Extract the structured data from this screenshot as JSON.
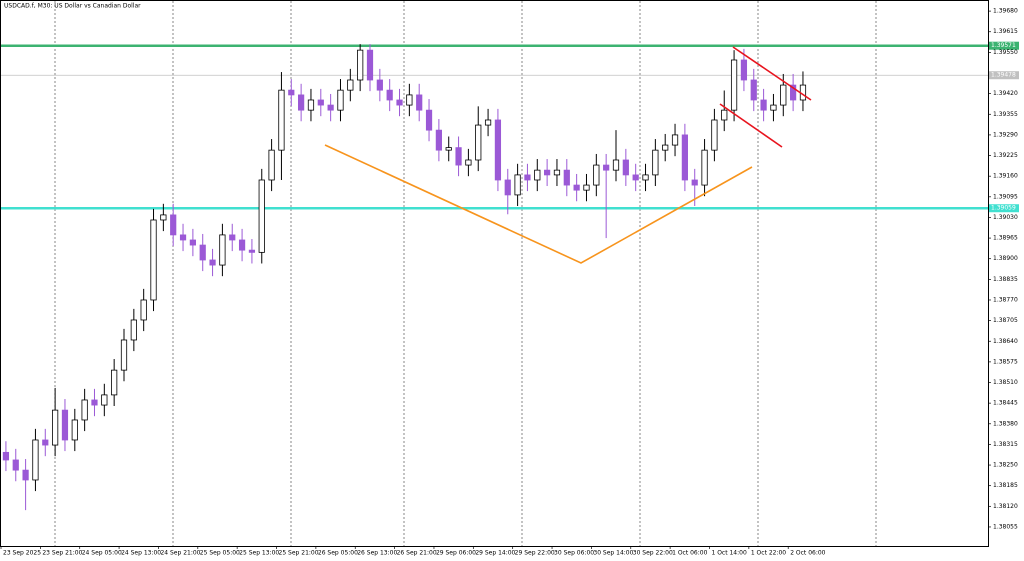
{
  "chart_data": {
    "type": "candlestick",
    "title": "USDCAD.f, M30:  US Dollar vs Canadian Dollar",
    "ylim": [
      1.37995,
      1.39715
    ],
    "yticks": [
      {
        "value": 1.3968,
        "label": "1.39680"
      },
      1.39615,
      {
        "value": 1.3955,
        "label": "1.39550"
      },
      {
        "value": 1.3942,
        "label": "1.39420"
      },
      1.39355,
      {
        "value": 1.3929,
        "label": "1.39290"
      },
      1.39225,
      {
        "value": 1.3916,
        "label": "1.39160"
      },
      1.39095,
      {
        "value": 1.3903,
        "label": "1.39030"
      },
      1.38965,
      {
        "value": 1.389,
        "label": "1.38900"
      },
      1.38835,
      {
        "value": 1.3877,
        "label": "1.38770"
      },
      1.38705,
      {
        "value": 1.3864,
        "label": "1.38640"
      },
      1.38575,
      {
        "value": 1.3851,
        "label": "1.38510"
      },
      1.38445,
      {
        "value": 1.3838,
        "label": "1.38380"
      },
      1.38315,
      {
        "value": 1.3825,
        "label": "1.38250"
      },
      1.38185,
      {
        "value": 1.3812,
        "label": "1.38120"
      },
      1.38055
    ],
    "xlim": [
      0,
      100
    ],
    "xticks": [
      {
        "value": 0,
        "label": "23 Sep 2025"
      },
      {
        "value": 4,
        "label": "23 Sep 21:00"
      },
      {
        "value": 8,
        "label": "24 Sep 05:00"
      },
      {
        "value": 12,
        "label": "24 Sep 13:00"
      },
      {
        "value": 16,
        "label": "24 Sep 21:00"
      },
      {
        "value": 20,
        "label": "25 Sep 05:00"
      },
      {
        "value": 24,
        "label": "25 Sep 13:00"
      },
      {
        "value": 28,
        "label": "25 Sep 21:00"
      },
      {
        "value": 32,
        "label": "26 Sep 05:00"
      },
      {
        "value": 36,
        "label": "26 Sep 13:00"
      },
      {
        "value": 40,
        "label": "26 Sep 21:00"
      },
      {
        "value": 44,
        "label": "29 Sep 06:00"
      },
      {
        "value": 48,
        "label": "29 Sep 14:00"
      },
      {
        "value": 52,
        "label": "29 Sep 22:00"
      },
      {
        "value": 56,
        "label": "30 Sep 06:00"
      },
      {
        "value": 60,
        "label": "30 Sep 14:00"
      },
      {
        "value": 64,
        "label": "30 Sep 22:00"
      },
      {
        "value": 68,
        "label": "1 Oct 06:00"
      },
      {
        "value": 72,
        "label": "1 Oct 14:00"
      },
      {
        "value": 76,
        "label": "1 Oct 22:00"
      },
      {
        "value": 80,
        "label": "2 Oct 06:00"
      }
    ],
    "up_color": "#000000",
    "down_color": "#9b59d6",
    "open": [
      1.3829,
      1.38266,
      1.38234,
      1.38203,
      1.38329,
      1.38313,
      1.38423,
      1.38329,
      1.38392,
      1.38455,
      1.38439,
      1.38471,
      1.38549,
      1.38644,
      1.38707,
      1.3877,
      1.39022,
      1.39038,
      1.38975,
      1.38959,
      1.38943,
      1.38896,
      1.3888,
      1.38975,
      1.38959,
      1.38927,
      1.3892,
      1.39148,
      1.39242,
      1.39431,
      1.39416,
      1.39368,
      1.394,
      1.39384,
      1.39368,
      1.39431,
      1.39463,
      1.39557,
      1.39463,
      1.39431,
      1.394,
      1.39384,
      1.39416,
      1.39368,
      1.39305,
      1.39242,
      1.3925,
      1.39195,
      1.39211,
      1.39321,
      1.39337,
      1.39148,
      1.39101,
      1.39164,
      1.39148,
      1.39179,
      1.39164,
      1.39179,
      1.39132,
      1.39116,
      1.39132,
      1.39195,
      1.39179,
      1.39211,
      1.39164,
      1.39148,
      1.39164,
      1.39242,
      1.39258,
      1.3929,
      1.39148,
      1.39132,
      1.39242,
      1.39337,
      1.39368,
      1.39526,
      1.39463,
      1.394,
      1.39368,
      1.39384,
      1.39447,
      1.394
    ],
    "high": [
      1.38325,
      1.38301,
      1.38269,
      1.38364,
      1.38364,
      1.38493,
      1.38458,
      1.38427,
      1.3849,
      1.3849,
      1.38506,
      1.38584,
      1.38679,
      1.38742,
      1.38805,
      1.39057,
      1.39073,
      1.39073,
      1.3901,
      1.38994,
      1.38978,
      1.38931,
      1.3901,
      1.3901,
      1.38994,
      1.38962,
      1.39183,
      1.39277,
      1.39488,
      1.39466,
      1.39451,
      1.39435,
      1.39435,
      1.39419,
      1.39466,
      1.39498,
      1.39576,
      1.39576,
      1.39498,
      1.39466,
      1.39435,
      1.39451,
      1.39451,
      1.39403,
      1.3934,
      1.39285,
      1.39285,
      1.39246,
      1.3938,
      1.39372,
      1.39372,
      1.39183,
      1.39199,
      1.39199,
      1.39214,
      1.39214,
      1.39214,
      1.39214,
      1.39167,
      1.39167,
      1.3923,
      1.3923,
      1.39305,
      1.39246,
      1.39199,
      1.39199,
      1.39277,
      1.39293,
      1.39325,
      1.39325,
      1.39183,
      1.39277,
      1.39372,
      1.3943,
      1.39557,
      1.39561,
      1.39498,
      1.39435,
      1.39419,
      1.39482,
      1.39482,
      1.3949
    ],
    "low": [
      1.38231,
      1.38199,
      1.38108,
      1.38168,
      1.38278,
      1.38278,
      1.38294,
      1.38294,
      1.38357,
      1.38404,
      1.38404,
      1.38436,
      1.38514,
      1.38609,
      1.38672,
      1.38735,
      1.38987,
      1.3894,
      1.38924,
      1.38908,
      1.38861,
      1.38845,
      1.38845,
      1.38924,
      1.38892,
      1.38885,
      1.38885,
      1.39113,
      1.39148,
      1.39381,
      1.39333,
      1.39333,
      1.39349,
      1.39333,
      1.39333,
      1.39396,
      1.39428,
      1.39428,
      1.39396,
      1.39365,
      1.39349,
      1.39349,
      1.39333,
      1.3927,
      1.39207,
      1.39207,
      1.3916,
      1.3916,
      1.39176,
      1.39286,
      1.39113,
      1.3904,
      1.39066,
      1.39113,
      1.39113,
      1.39129,
      1.39129,
      1.39097,
      1.39081,
      1.39081,
      1.39097,
      1.38965,
      1.39144,
      1.39129,
      1.39113,
      1.39113,
      1.39129,
      1.39207,
      1.39223,
      1.39113,
      1.39066,
      1.39097,
      1.39207,
      1.39302,
      1.39333,
      1.39428,
      1.39365,
      1.39333,
      1.39333,
      1.39349,
      1.39365,
      1.39365
    ],
    "close": [
      1.38266,
      1.38234,
      1.38203,
      1.38329,
      1.38313,
      1.38423,
      1.38329,
      1.38392,
      1.38455,
      1.38439,
      1.38471,
      1.38549,
      1.38644,
      1.38707,
      1.3877,
      1.39022,
      1.39038,
      1.38975,
      1.38959,
      1.38943,
      1.38896,
      1.3888,
      1.38975,
      1.38959,
      1.38927,
      1.3892,
      1.39148,
      1.39242,
      1.39431,
      1.39416,
      1.39368,
      1.394,
      1.39384,
      1.39368,
      1.39431,
      1.39463,
      1.39557,
      1.39463,
      1.39431,
      1.394,
      1.39384,
      1.39416,
      1.39368,
      1.39305,
      1.39242,
      1.3925,
      1.39195,
      1.39211,
      1.39321,
      1.39337,
      1.39148,
      1.39101,
      1.39164,
      1.39148,
      1.39179,
      1.39164,
      1.39179,
      1.39132,
      1.39116,
      1.39132,
      1.39195,
      1.39179,
      1.39211,
      1.39164,
      1.39148,
      1.39164,
      1.39242,
      1.39258,
      1.3929,
      1.39148,
      1.39132,
      1.39242,
      1.39337,
      1.39368,
      1.39526,
      1.39463,
      1.394,
      1.39368,
      1.39384,
      1.39447,
      1.394,
      1.39447
    ],
    "levels": [
      {
        "value": 1.39571,
        "color": "#3cb371"
      },
      {
        "value": 1.39059,
        "color": "#40e0d0"
      },
      {
        "value": 1.39478,
        "color": "#c0c0c0"
      }
    ]
  }
}
